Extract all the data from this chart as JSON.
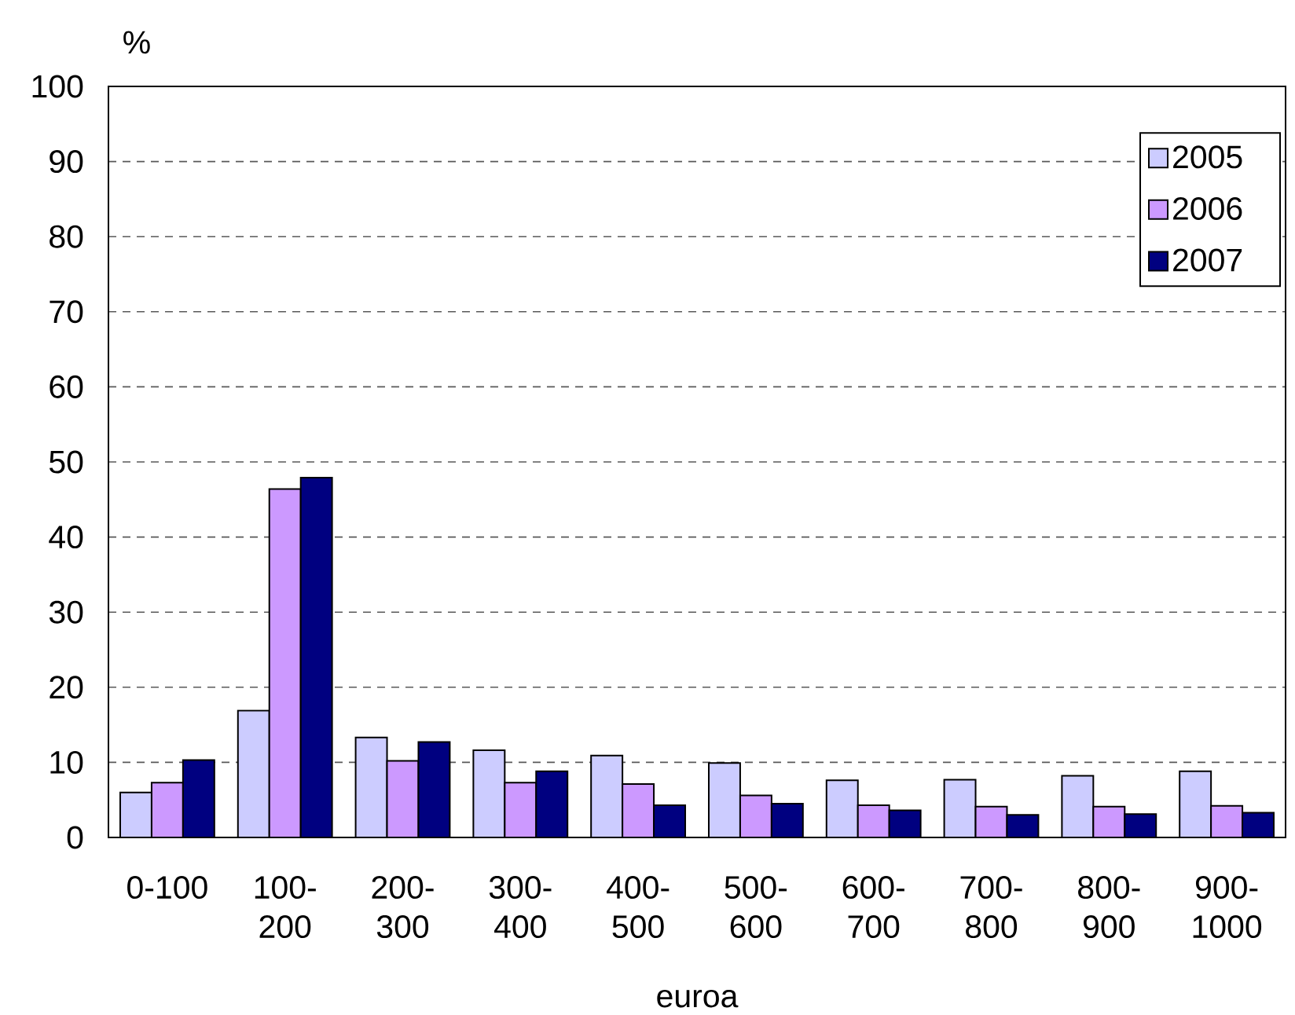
{
  "chart_data": {
    "type": "bar",
    "categories": [
      "0-100",
      "100-200",
      "200-300",
      "300-400",
      "400-500",
      "500-600",
      "600-700",
      "700-800",
      "800-900",
      "900-1000"
    ],
    "series": [
      {
        "name": "2005",
        "color": "#ccccff",
        "values": [
          6.0,
          16.9,
          13.3,
          11.6,
          10.9,
          9.9,
          7.6,
          7.7,
          8.2,
          8.8
        ]
      },
      {
        "name": "2006",
        "color": "#cc99ff",
        "values": [
          7.3,
          46.4,
          10.2,
          7.3,
          7.1,
          5.6,
          4.3,
          4.1,
          4.1,
          4.2
        ]
      },
      {
        "name": "2007",
        "color": "#000080",
        "values": [
          10.3,
          47.9,
          12.7,
          8.8,
          4.3,
          4.5,
          3.6,
          3.0,
          3.1,
          3.3
        ]
      }
    ],
    "xlabel": "euroa",
    "ylabel": "%",
    "ylim": [
      0,
      100
    ],
    "yticks": [
      0,
      10,
      20,
      30,
      40,
      50,
      60,
      70,
      80,
      90,
      100
    ],
    "grid": "y",
    "legend": "top right"
  }
}
